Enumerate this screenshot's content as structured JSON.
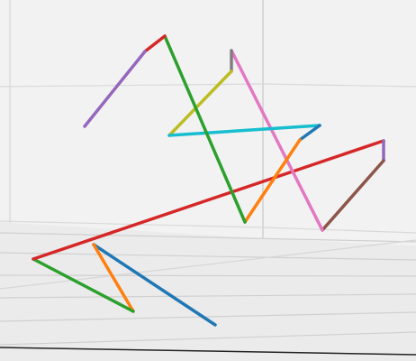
{
  "chart_data": {
    "type": "line",
    "projection": "3d",
    "title": "",
    "xlabel": "",
    "ylabel": "",
    "zlabel": "",
    "grid": true,
    "colors": {
      "pane": "#f2f2f2",
      "floor_pane": "#ebebeb",
      "grid": "#cfcfcf",
      "axis_line": "#222222"
    },
    "segments": [
      {
        "color": "#1f77b4",
        "points": [
          [
            239,
            360
          ],
          [
            104,
            271
          ]
        ]
      },
      {
        "color": "#ff7f0e",
        "points": [
          [
            104,
            271
          ],
          [
            148,
            345
          ]
        ]
      },
      {
        "color": "#2ca02c",
        "points": [
          [
            148,
            345
          ],
          [
            37,
            287
          ]
        ]
      },
      {
        "color": "#d62728",
        "points": [
          [
            37,
            287
          ],
          [
            426,
            156
          ]
        ]
      },
      {
        "color": "#9467bd",
        "points": [
          [
            426,
            156
          ],
          [
            426,
            178
          ]
        ]
      },
      {
        "color": "#8c564b",
        "points": [
          [
            426,
            178
          ],
          [
            358,
            255
          ]
        ]
      },
      {
        "color": "#e377c2",
        "points": [
          [
            358,
            255
          ],
          [
            257,
            56
          ]
        ]
      },
      {
        "color": "#7f7f7f",
        "points": [
          [
            257,
            56
          ],
          [
            257,
            79
          ]
        ]
      },
      {
        "color": "#bcbd22",
        "points": [
          [
            257,
            79
          ],
          [
            188,
            150
          ]
        ]
      },
      {
        "color": "#17becf",
        "points": [
          [
            188,
            150
          ],
          [
            355,
            139
          ]
        ]
      },
      {
        "color": "#1f77b4",
        "points": [
          [
            355,
            139
          ],
          [
            333,
            155
          ]
        ]
      },
      {
        "color": "#ff7f0e",
        "points": [
          [
            333,
            155
          ],
          [
            272,
            246
          ]
        ]
      },
      {
        "color": "#2ca02c",
        "points": [
          [
            272,
            246
          ],
          [
            183,
            40
          ]
        ]
      },
      {
        "color": "#d62728",
        "points": [
          [
            183,
            40
          ],
          [
            161,
            57
          ]
        ]
      },
      {
        "color": "#9467bd",
        "points": [
          [
            161,
            57
          ],
          [
            94,
            140
          ]
        ]
      }
    ]
  }
}
